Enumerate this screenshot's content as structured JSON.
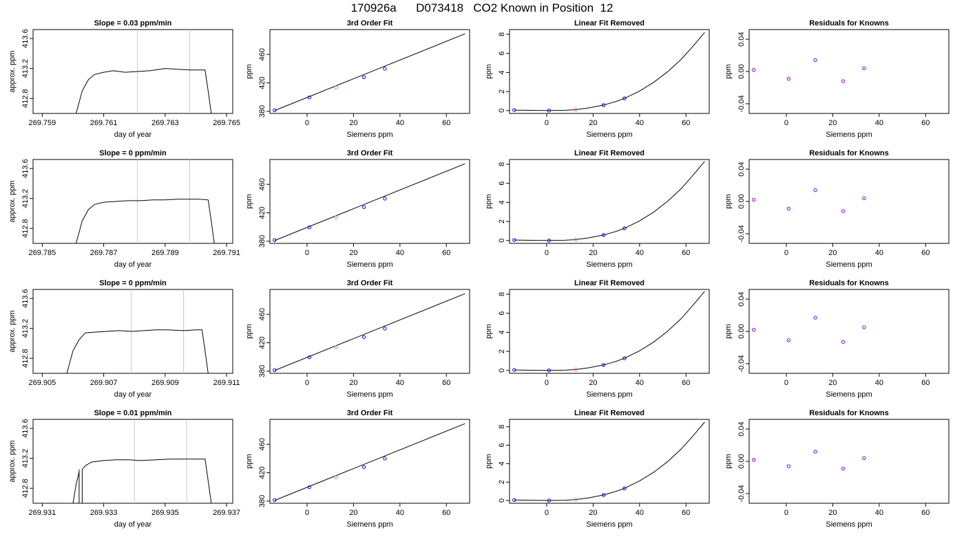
{
  "title": "170926a      D073418   CO2 Known in Position  12",
  "colors": {
    "trace": "#000000",
    "marker_lines": "#c8c8c8",
    "knowns": "#0000ff",
    "sample": "#ff66cc",
    "residual": "#7f00ff",
    "fit_line": "#000000"
  },
  "chart_data": [
    {
      "type": "line",
      "row": 1,
      "column": 1,
      "title": "Slope =  0.03  ppm/min",
      "xlabel": "day of year",
      "ylabel": "approx. ppm",
      "xlim": [
        269.7587,
        269.7652
      ],
      "ylim": [
        412.6,
        413.72
      ],
      "xticks": [
        269.759,
        269.761,
        269.763,
        269.765
      ],
      "xtick_labels": [
        "269.759",
        "269.761",
        "269.763",
        "269.765"
      ],
      "yticks": [
        412.8,
        413.2,
        413.6
      ],
      "ytick_labels": [
        "412.8",
        "413.2",
        "413.6"
      ],
      "vlines": [
        269.7621,
        269.7638
      ],
      "x": [
        269.7601,
        269.7603,
        269.7605,
        269.7607,
        269.761,
        269.7613,
        269.7617,
        269.7621,
        269.7625,
        269.763,
        269.7634,
        269.7638,
        269.7641,
        269.7643,
        269.7644,
        269.7645
      ],
      "y": [
        412.6,
        412.9,
        413.05,
        413.12,
        413.15,
        413.17,
        413.15,
        413.16,
        413.17,
        413.2,
        413.19,
        413.18,
        413.18,
        413.18,
        412.9,
        412.6
      ]
    },
    {
      "type": "scatter",
      "row": 1,
      "column": 2,
      "title": "3rd Order Fit",
      "xlabel": "Siemens ppm",
      "ylabel": "ppm",
      "xlim": [
        -16,
        70
      ],
      "ylim": [
        377,
        495
      ],
      "xticks": [
        0,
        20,
        40,
        60
      ],
      "xtick_labels": [
        "0",
        "20",
        "40",
        "60"
      ],
      "yticks": [
        380,
        420,
        460
      ],
      "ytick_labels": [
        "380",
        "420",
        "460"
      ],
      "fit_line": {
        "x": [
          -14,
          68
        ],
        "y": [
          381,
          489
        ]
      },
      "knowns": {
        "x": [
          -14,
          1,
          24.5,
          33.5
        ],
        "y": [
          381.5,
          399.5,
          428,
          440
        ]
      },
      "sample": {
        "x": [
          12.5
        ],
        "y": [
          413.5
        ]
      }
    },
    {
      "type": "scatter",
      "row": 1,
      "column": 3,
      "title": "Linear Fit Removed",
      "xlabel": "Siemens ppm",
      "ylabel": "ppm",
      "xlim": [
        -16,
        70
      ],
      "ylim": [
        -0.3,
        8.5
      ],
      "xticks": [
        0,
        20,
        40,
        60
      ],
      "xtick_labels": [
        "0",
        "20",
        "40",
        "60"
      ],
      "yticks": [
        0,
        2,
        4,
        6,
        8
      ],
      "ytick_labels": [
        "0",
        "2",
        "4",
        "6",
        "8"
      ],
      "fit_curve": {
        "x": [
          -14,
          -5,
          1,
          8,
          12.5,
          18,
          24.5,
          30,
          33.5,
          40,
          46,
          52,
          58,
          63,
          68
        ],
        "y": [
          0.05,
          0.02,
          0.0,
          0.03,
          0.1,
          0.28,
          0.58,
          0.96,
          1.28,
          2.05,
          2.95,
          4.05,
          5.4,
          6.75,
          8.2
        ]
      },
      "knowns": {
        "x": [
          -14,
          1,
          24.5,
          33.5
        ],
        "y": [
          0.05,
          0.0,
          0.58,
          1.28
        ]
      },
      "sample": {
        "x": [
          12.5
        ],
        "y": [
          0.1
        ]
      }
    },
    {
      "type": "scatter",
      "row": 1,
      "column": 4,
      "title": "Residuals for Knowns",
      "xlabel": "Siemens ppm",
      "ylabel": "ppm",
      "xlim": [
        -16,
        70
      ],
      "ylim": [
        -0.052,
        0.052
      ],
      "xticks": [
        0,
        20,
        40,
        60
      ],
      "xtick_labels": [
        "0",
        "20",
        "40",
        "60"
      ],
      "yticks": [
        -0.04,
        0.0,
        0.04
      ],
      "ytick_labels": [
        "-0.04",
        "0.00",
        "0.04"
      ],
      "residuals": {
        "x": [
          -14,
          1,
          12.5,
          24.5,
          33.5
        ],
        "y": [
          0.002,
          -0.009,
          0.014,
          -0.012,
          0.004
        ]
      }
    },
    {
      "type": "line",
      "row": 2,
      "column": 1,
      "title": "Slope =  0  ppm/min",
      "xlabel": "day of year",
      "ylabel": "approx. ppm",
      "xlim": [
        269.7847,
        269.7912
      ],
      "ylim": [
        412.6,
        413.72
      ],
      "xticks": [
        269.785,
        269.787,
        269.789,
        269.791
      ],
      "xtick_labels": [
        "269.785",
        "269.787",
        "269.789",
        "269.791"
      ],
      "yticks": [
        412.8,
        413.2,
        413.6
      ],
      "ytick_labels": [
        "412.8",
        "413.2",
        "413.6"
      ],
      "vlines": [
        269.7881,
        269.7898
      ],
      "x": [
        269.7861,
        269.7863,
        269.7865,
        269.7867,
        269.787,
        269.7874,
        269.7878,
        269.7882,
        269.7886,
        269.789,
        269.7894,
        269.7898,
        269.7901,
        269.7904,
        269.7905,
        269.7906
      ],
      "y": [
        412.6,
        412.9,
        413.05,
        413.12,
        413.15,
        413.16,
        413.17,
        413.17,
        413.18,
        413.18,
        413.19,
        413.19,
        413.19,
        413.18,
        412.9,
        412.6
      ]
    },
    {
      "type": "scatter",
      "row": 2,
      "column": 2,
      "title": "3rd Order Fit",
      "xlabel": "Siemens ppm",
      "ylabel": "ppm",
      "xlim": [
        -16,
        70
      ],
      "ylim": [
        377,
        495
      ],
      "xticks": [
        0,
        20,
        40,
        60
      ],
      "xtick_labels": [
        "0",
        "20",
        "40",
        "60"
      ],
      "yticks": [
        380,
        420,
        460
      ],
      "ytick_labels": [
        "380",
        "420",
        "460"
      ],
      "fit_line": {
        "x": [
          -14,
          68
        ],
        "y": [
          381,
          489
        ]
      },
      "knowns": {
        "x": [
          -14,
          1,
          24.5,
          33.5
        ],
        "y": [
          381.5,
          399.5,
          428,
          440
        ]
      },
      "sample": {
        "x": [
          12.5
        ],
        "y": [
          413.5
        ]
      }
    },
    {
      "type": "scatter",
      "row": 2,
      "column": 3,
      "title": "Linear Fit Removed",
      "xlabel": "Siemens ppm",
      "ylabel": "ppm",
      "xlim": [
        -16,
        70
      ],
      "ylim": [
        -0.3,
        8.5
      ],
      "xticks": [
        0,
        20,
        40,
        60
      ],
      "xtick_labels": [
        "0",
        "20",
        "40",
        "60"
      ],
      "yticks": [
        0,
        2,
        4,
        6,
        8
      ],
      "ytick_labels": [
        "0",
        "2",
        "4",
        "6",
        "8"
      ],
      "fit_curve": {
        "x": [
          -14,
          -5,
          1,
          8,
          12.5,
          18,
          24.5,
          30,
          33.5,
          40,
          46,
          52,
          58,
          63,
          68
        ],
        "y": [
          0.05,
          0.02,
          0.0,
          0.03,
          0.1,
          0.28,
          0.58,
          0.96,
          1.28,
          2.06,
          2.97,
          4.1,
          5.45,
          6.85,
          8.3
        ]
      },
      "knowns": {
        "x": [
          -14,
          1,
          24.5,
          33.5
        ],
        "y": [
          0.05,
          0.0,
          0.58,
          1.28
        ]
      },
      "sample": {
        "x": [
          12.5
        ],
        "y": [
          0.1
        ]
      }
    },
    {
      "type": "scatter",
      "row": 2,
      "column": 4,
      "title": "Residuals for Knowns",
      "xlabel": "Siemens ppm",
      "ylabel": "ppm",
      "xlim": [
        -16,
        70
      ],
      "ylim": [
        -0.052,
        0.052
      ],
      "xticks": [
        0,
        20,
        40,
        60
      ],
      "xtick_labels": [
        "0",
        "20",
        "40",
        "60"
      ],
      "yticks": [
        -0.04,
        0.0,
        0.04
      ],
      "ytick_labels": [
        "-0.04",
        "0.00",
        "0.04"
      ],
      "residuals": {
        "x": [
          -14,
          1,
          12.5,
          24.5,
          33.5
        ],
        "y": [
          0.002,
          -0.009,
          0.014,
          -0.012,
          0.004
        ]
      }
    },
    {
      "type": "line",
      "row": 3,
      "column": 1,
      "title": "Slope =  0  ppm/min",
      "xlabel": "day of year",
      "ylabel": "approx. ppm",
      "xlim": [
        269.9047,
        269.9112
      ],
      "ylim": [
        412.6,
        413.72
      ],
      "xticks": [
        269.905,
        269.907,
        269.909,
        269.911
      ],
      "xtick_labels": [
        "269.905",
        "269.907",
        "269.909",
        "269.911"
      ],
      "yticks": [
        412.8,
        413.2,
        413.6
      ],
      "ytick_labels": [
        "412.8",
        "413.2",
        "413.6"
      ],
      "vlines": [
        269.9079,
        269.9096
      ],
      "x": [
        269.9058,
        269.906,
        269.9062,
        269.9064,
        269.9067,
        269.9071,
        269.9075,
        269.9079,
        269.9083,
        269.9087,
        269.9091,
        269.9096,
        269.91,
        269.9102,
        269.9103,
        269.9104
      ],
      "y": [
        412.6,
        412.9,
        413.05,
        413.14,
        413.15,
        413.16,
        413.17,
        413.16,
        413.17,
        413.18,
        413.18,
        413.17,
        413.18,
        413.18,
        412.9,
        412.6
      ]
    },
    {
      "type": "scatter",
      "row": 3,
      "column": 2,
      "title": "3rd Order Fit",
      "xlabel": "Siemens ppm",
      "ylabel": "ppm",
      "xlim": [
        -16,
        70
      ],
      "ylim": [
        377,
        495
      ],
      "xticks": [
        0,
        20,
        40,
        60
      ],
      "xtick_labels": [
        "0",
        "20",
        "40",
        "60"
      ],
      "yticks": [
        380,
        420,
        460
      ],
      "ytick_labels": [
        "380",
        "420",
        "460"
      ],
      "fit_line": {
        "x": [
          -14,
          68
        ],
        "y": [
          381,
          489
        ]
      },
      "knowns": {
        "x": [
          -14,
          1,
          24.5,
          33.5
        ],
        "y": [
          381.5,
          399.5,
          428,
          440
        ]
      },
      "sample": {
        "x": [
          12.5
        ],
        "y": [
          413.5
        ]
      }
    },
    {
      "type": "scatter",
      "row": 3,
      "column": 3,
      "title": "Linear Fit Removed",
      "xlabel": "Siemens ppm",
      "ylabel": "ppm",
      "xlim": [
        -16,
        70
      ],
      "ylim": [
        -0.3,
        8.5
      ],
      "xticks": [
        0,
        20,
        40,
        60
      ],
      "xtick_labels": [
        "0",
        "20",
        "40",
        "60"
      ],
      "yticks": [
        0,
        2,
        4,
        6,
        8
      ],
      "ytick_labels": [
        "0",
        "2",
        "4",
        "6",
        "8"
      ],
      "fit_curve": {
        "x": [
          -14,
          -5,
          1,
          8,
          12.5,
          18,
          24.5,
          30,
          33.5,
          40,
          46,
          52,
          58,
          63,
          68
        ],
        "y": [
          0.05,
          0.02,
          0.0,
          0.03,
          0.1,
          0.28,
          0.58,
          0.96,
          1.28,
          2.06,
          2.97,
          4.1,
          5.45,
          6.85,
          8.3
        ]
      },
      "knowns": {
        "x": [
          -14,
          1,
          24.5,
          33.5
        ],
        "y": [
          0.05,
          0.0,
          0.58,
          1.28
        ]
      },
      "sample": {
        "x": [
          12.5
        ],
        "y": [
          0.1
        ]
      }
    },
    {
      "type": "scatter",
      "row": 3,
      "column": 4,
      "title": "Residuals for Knowns",
      "xlabel": "Siemens ppm",
      "ylabel": "ppm",
      "xlim": [
        -16,
        70
      ],
      "ylim": [
        -0.052,
        0.052
      ],
      "xticks": [
        0,
        20,
        40,
        60
      ],
      "xtick_labels": [
        "0",
        "20",
        "40",
        "60"
      ],
      "yticks": [
        -0.04,
        0.0,
        0.04
      ],
      "ytick_labels": [
        "-0.04",
        "0.00",
        "0.04"
      ],
      "residuals": {
        "x": [
          -14,
          1,
          12.5,
          24.5,
          33.5
        ],
        "y": [
          0.002,
          -0.011,
          0.017,
          -0.013,
          0.005
        ]
      }
    },
    {
      "type": "line",
      "row": 4,
      "column": 1,
      "title": "Slope =  0.01  ppm/min",
      "xlabel": "day of year",
      "ylabel": "approx. ppm",
      "xlim": [
        269.9307,
        269.9372
      ],
      "ylim": [
        412.6,
        413.72
      ],
      "xticks": [
        269.931,
        269.933,
        269.935,
        269.937
      ],
      "xtick_labels": [
        "269.931",
        "269.933",
        "269.935",
        "269.937"
      ],
      "yticks": [
        412.8,
        413.2,
        413.6
      ],
      "ytick_labels": [
        "412.8",
        "413.2",
        "413.6"
      ],
      "vlines": [
        269.934,
        269.9357
      ],
      "x": [
        269.932,
        269.9321,
        269.9322,
        269.9322,
        269.9322,
        269.9323,
        269.9323,
        269.9324,
        269.9326,
        269.933,
        269.9334,
        269.9338,
        269.9342,
        269.9347,
        269.9352,
        269.9357,
        269.936,
        269.9363,
        269.9364,
        269.9365
      ],
      "y": [
        412.6,
        412.85,
        413.02,
        413.05,
        412.6,
        412.6,
        413.05,
        413.1,
        413.15,
        413.17,
        413.18,
        413.18,
        413.17,
        413.18,
        413.19,
        413.19,
        413.19,
        413.19,
        412.9,
        412.6
      ]
    },
    {
      "type": "scatter",
      "row": 4,
      "column": 2,
      "title": "3rd Order Fit",
      "xlabel": "Siemens ppm",
      "ylabel": "ppm",
      "xlim": [
        -16,
        70
      ],
      "ylim": [
        377,
        495
      ],
      "xticks": [
        0,
        20,
        40,
        60
      ],
      "xtick_labels": [
        "0",
        "20",
        "40",
        "60"
      ],
      "yticks": [
        380,
        420,
        460
      ],
      "ytick_labels": [
        "380",
        "420",
        "460"
      ],
      "fit_line": {
        "x": [
          -14,
          68
        ],
        "y": [
          381,
          489
        ]
      },
      "knowns": {
        "x": [
          -14,
          1,
          24.5,
          33.5
        ],
        "y": [
          381.5,
          399.5,
          428,
          440
        ]
      },
      "sample": {
        "x": [
          12.5
        ],
        "y": [
          413.5
        ]
      }
    },
    {
      "type": "scatter",
      "row": 4,
      "column": 3,
      "title": "Linear Fit Removed",
      "xlabel": "Siemens ppm",
      "ylabel": "ppm",
      "xlim": [
        -16,
        70
      ],
      "ylim": [
        -0.3,
        8.8
      ],
      "xticks": [
        0,
        20,
        40,
        60
      ],
      "xtick_labels": [
        "0",
        "20",
        "40",
        "60"
      ],
      "yticks": [
        0,
        2,
        4,
        6,
        8
      ],
      "ytick_labels": [
        "0",
        "2",
        "4",
        "6",
        "8"
      ],
      "fit_curve": {
        "x": [
          -14,
          -5,
          1,
          8,
          12.5,
          18,
          24.5,
          30,
          33.5,
          40,
          46,
          52,
          58,
          63,
          68
        ],
        "y": [
          0.05,
          0.02,
          0.0,
          0.03,
          0.1,
          0.28,
          0.6,
          1.0,
          1.32,
          2.12,
          3.05,
          4.2,
          5.6,
          7.0,
          8.5
        ]
      },
      "knowns": {
        "x": [
          -14,
          1,
          24.5,
          33.5
        ],
        "y": [
          0.05,
          0.0,
          0.6,
          1.32
        ]
      },
      "sample": {
        "x": [
          12.5
        ],
        "y": [
          0.1
        ]
      }
    },
    {
      "type": "scatter",
      "row": 4,
      "column": 4,
      "title": "Residuals for Knowns",
      "xlabel": "Siemens ppm",
      "ylabel": "ppm",
      "xlim": [
        -16,
        70
      ],
      "ylim": [
        -0.052,
        0.052
      ],
      "xticks": [
        0,
        20,
        40,
        60
      ],
      "xtick_labels": [
        "0",
        "20",
        "40",
        "60"
      ],
      "yticks": [
        -0.04,
        0.0,
        0.04
      ],
      "ytick_labels": [
        "-0.04",
        "0.00",
        "0.04"
      ],
      "residuals": {
        "x": [
          -14,
          1,
          12.5,
          24.5,
          33.5
        ],
        "y": [
          0.002,
          -0.006,
          0.012,
          -0.009,
          0.004
        ]
      }
    }
  ]
}
